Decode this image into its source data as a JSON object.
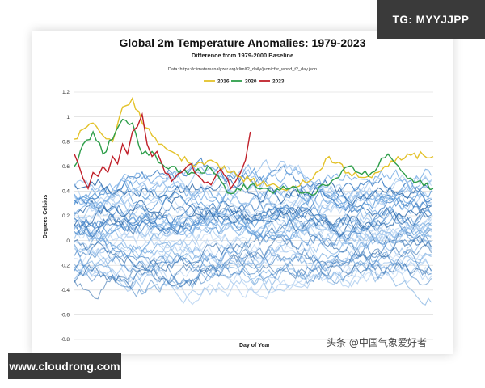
{
  "watermark": "TG: MYYJJPP",
  "site": "www.cloudrong.com",
  "credit": "头条 @中国气象爱好者",
  "colors": {
    "history": [
      "#9cc3ec",
      "#7fb1e6",
      "#5d9bd8",
      "#3f7fc4",
      "#2f6aaa",
      "#b8d3f1"
    ],
    "y2016": "#e3c22a",
    "y2020": "#2e9e4a",
    "y2023": "#c0202a"
  },
  "chart_data": {
    "type": "line",
    "title": "Global 2m Temperature Anomalies: 1979-2023",
    "subtitle": "Difference from 1979-2000 Baseline",
    "source": "Data:  https://climatereanalyzer.org/clim/t2_daily/json/cfsr_world_t2_day.json",
    "xlabel": "Day of Year",
    "ylabel": "Degrees Celsius",
    "xlim": [
      1,
      366
    ],
    "ylim": [
      -0.8,
      1.2
    ],
    "yticks": [
      "1.2",
      "1",
      "0.8",
      "0.6",
      "0.4",
      "0.2",
      "0",
      "-0.2",
      "-0.4",
      "-0.6",
      "-0.8"
    ],
    "grid": true,
    "legend_position": "top-center",
    "legend": [
      "2016",
      "2020",
      "2023"
    ],
    "series": [
      {
        "name": "2016",
        "x": [
          1,
          10,
          20,
          30,
          40,
          50,
          60,
          70,
          80,
          90,
          100,
          120,
          140,
          160,
          180,
          200,
          220,
          240,
          260,
          280,
          300,
          320,
          340,
          366
        ],
        "y": [
          0.82,
          0.9,
          0.95,
          0.85,
          0.8,
          1.08,
          1.15,
          0.95,
          0.85,
          0.78,
          0.72,
          0.62,
          0.65,
          0.55,
          0.48,
          0.45,
          0.42,
          0.48,
          0.68,
          0.55,
          0.52,
          0.6,
          0.7,
          0.68
        ]
      },
      {
        "name": "2020",
        "x": [
          1,
          10,
          20,
          30,
          40,
          50,
          60,
          70,
          80,
          90,
          100,
          120,
          140,
          160,
          180,
          200,
          220,
          240,
          260,
          280,
          300,
          320,
          340,
          366
        ],
        "y": [
          0.6,
          0.78,
          0.88,
          0.7,
          0.82,
          0.98,
          0.95,
          0.7,
          0.72,
          0.62,
          0.6,
          0.55,
          0.58,
          0.38,
          0.45,
          0.4,
          0.42,
          0.38,
          0.45,
          0.6,
          0.52,
          0.7,
          0.5,
          0.42
        ]
      },
      {
        "name": "2023",
        "x": [
          1,
          5,
          10,
          15,
          20,
          25,
          30,
          35,
          40,
          45,
          50,
          55,
          60,
          65,
          70,
          75,
          80,
          85,
          90,
          100,
          110,
          120,
          130,
          140,
          150,
          160,
          165,
          170,
          175,
          180
        ],
        "y": [
          0.7,
          0.62,
          0.5,
          0.42,
          0.55,
          0.52,
          0.6,
          0.55,
          0.68,
          0.62,
          0.78,
          0.7,
          0.88,
          0.92,
          1.02,
          0.78,
          0.68,
          0.72,
          0.62,
          0.48,
          0.55,
          0.62,
          0.5,
          0.45,
          0.58,
          0.42,
          0.48,
          0.55,
          0.65,
          0.88
        ]
      }
    ]
  }
}
